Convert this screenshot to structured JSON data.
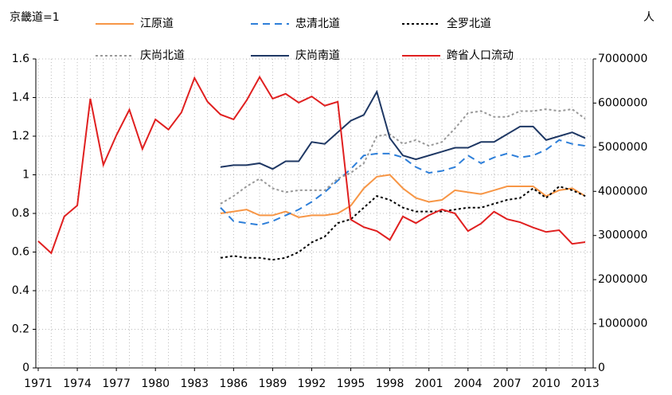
{
  "chart_data": {
    "type": "line",
    "y_label": "京畿道=1",
    "y2_label": "人",
    "x": [
      1971,
      1972,
      1973,
      1974,
      1975,
      1976,
      1977,
      1978,
      1979,
      1980,
      1981,
      1982,
      1983,
      1984,
      1985,
      1986,
      1987,
      1988,
      1989,
      1990,
      1991,
      1992,
      1993,
      1994,
      1995,
      1996,
      1997,
      1998,
      1999,
      2000,
      2001,
      2002,
      2003,
      2004,
      2005,
      2006,
      2007,
      2008,
      2009,
      2010,
      2011,
      2012,
      2013
    ],
    "xlim": [
      1971,
      2013
    ],
    "xticks": [
      1971,
      1974,
      1977,
      1980,
      1983,
      1986,
      1989,
      1992,
      1995,
      1998,
      2001,
      2004,
      2007,
      2010,
      2013
    ],
    "ylim": [
      0,
      1.6
    ],
    "yticks": [
      0,
      0.2,
      0.4,
      0.6,
      0.8,
      1,
      1.2,
      1.4,
      1.6
    ],
    "y2lim": [
      0,
      7000000
    ],
    "y2ticks": [
      0,
      1000000,
      2000000,
      3000000,
      4000000,
      5000000,
      6000000,
      7000000
    ],
    "grid": true,
    "series": [
      {
        "name": "江原道",
        "color": "#f79646",
        "style": "solid",
        "values": [
          null,
          null,
          null,
          null,
          null,
          null,
          null,
          null,
          null,
          null,
          null,
          null,
          null,
          null,
          0.8,
          0.81,
          0.82,
          0.79,
          0.79,
          0.81,
          0.78,
          0.79,
          0.79,
          0.8,
          0.84,
          0.93,
          0.99,
          1.0,
          0.93,
          0.88,
          0.86,
          0.87,
          0.92,
          0.91,
          0.9,
          0.92,
          0.94,
          0.94,
          0.94,
          0.89,
          0.92,
          0.93,
          0.89
        ]
      },
      {
        "name": "忠清北道",
        "color": "#2e7fd9",
        "style": "dashed",
        "values": [
          null,
          null,
          null,
          null,
          null,
          null,
          null,
          null,
          null,
          null,
          null,
          null,
          null,
          null,
          0.83,
          0.76,
          0.75,
          0.74,
          0.76,
          0.79,
          0.82,
          0.86,
          0.91,
          0.97,
          1.03,
          1.1,
          1.11,
          1.11,
          1.09,
          1.04,
          1.01,
          1.02,
          1.04,
          1.1,
          1.06,
          1.09,
          1.11,
          1.09,
          1.1,
          1.13,
          1.18,
          1.16,
          1.15
        ]
      },
      {
        "name": "全罗北道",
        "color": "#000000",
        "style": "dotted",
        "values": [
          null,
          null,
          null,
          null,
          null,
          null,
          null,
          null,
          null,
          null,
          null,
          null,
          null,
          null,
          0.57,
          0.58,
          0.57,
          0.57,
          0.56,
          0.57,
          0.6,
          0.65,
          0.68,
          0.75,
          0.77,
          0.83,
          0.89,
          0.87,
          0.83,
          0.81,
          0.81,
          0.81,
          0.82,
          0.83,
          0.83,
          0.85,
          0.87,
          0.88,
          0.93,
          0.88,
          0.94,
          0.92,
          0.89
        ]
      },
      {
        "name": "庆尚北道",
        "color": "#999999",
        "style": "dotted",
        "values": [
          null,
          null,
          null,
          null,
          null,
          null,
          null,
          null,
          null,
          null,
          null,
          null,
          null,
          null,
          0.85,
          0.89,
          0.94,
          0.98,
          0.93,
          0.91,
          0.92,
          0.92,
          0.92,
          0.98,
          1.01,
          1.06,
          1.2,
          1.21,
          1.16,
          1.18,
          1.15,
          1.17,
          1.24,
          1.32,
          1.33,
          1.3,
          1.3,
          1.33,
          1.33,
          1.34,
          1.33,
          1.34,
          1.29
        ]
      },
      {
        "name": "庆尚南道",
        "color": "#1f3864",
        "style": "solid",
        "values": [
          null,
          null,
          null,
          null,
          null,
          null,
          null,
          null,
          null,
          null,
          null,
          null,
          null,
          null,
          1.04,
          1.05,
          1.05,
          1.06,
          1.03,
          1.07,
          1.07,
          1.17,
          1.16,
          1.22,
          1.28,
          1.31,
          1.43,
          1.19,
          1.1,
          1.08,
          1.1,
          1.12,
          1.14,
          1.14,
          1.17,
          1.17,
          1.21,
          1.25,
          1.25,
          1.18,
          1.2,
          1.22,
          1.19
        ]
      },
      {
        "name": "跨省人口流动",
        "color": "#e02020",
        "style": "solid",
        "axis": "y2",
        "values": [
          2870000,
          2600000,
          3430000,
          3680000,
          6100000,
          4600000,
          5270000,
          5850000,
          4960000,
          5630000,
          5400000,
          5790000,
          6570000,
          6030000,
          5740000,
          5630000,
          6060000,
          6590000,
          6100000,
          6210000,
          6010000,
          6150000,
          5940000,
          6030000,
          3360000,
          3190000,
          3100000,
          2900000,
          3430000,
          3280000,
          3460000,
          3590000,
          3500000,
          3100000,
          3270000,
          3540000,
          3370000,
          3300000,
          3180000,
          3080000,
          3120000,
          2810000,
          2850000
        ]
      }
    ]
  }
}
